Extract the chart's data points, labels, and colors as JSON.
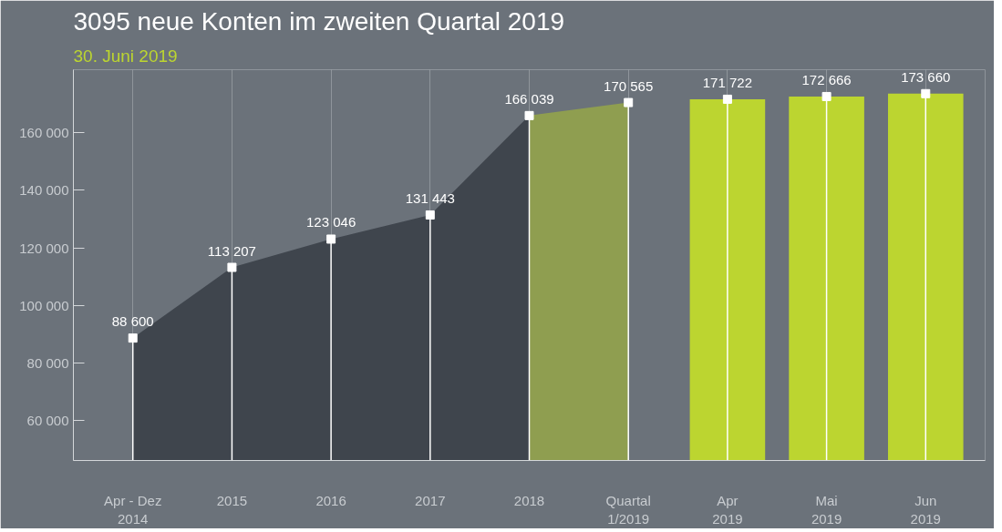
{
  "chart_data": {
    "type": "area",
    "title": "3095 neue Konten im zweiten Quartal 2019",
    "subtitle": "30. Juni 2019",
    "categories": [
      "Apr - Dez\n2014",
      "2015",
      "2016",
      "2017",
      "2018",
      "Quartal\n1/2019",
      "Apr\n2019",
      "Mai\n2019",
      "Jun\n2019"
    ],
    "ylim": [
      46000,
      182000
    ],
    "grid": "x",
    "yticks": [
      {
        "value": 60000,
        "label": "60 000"
      },
      {
        "value": 80000,
        "label": "80 000"
      },
      {
        "value": 100000,
        "label": "100 000"
      },
      {
        "value": 120000,
        "label": "120 000"
      },
      {
        "value": 140000,
        "label": "140 000"
      },
      {
        "value": 160000,
        "label": "160 000"
      }
    ],
    "series": [
      {
        "color": "#3f454d",
        "values": [
          88600,
          113207,
          123046,
          131443,
          166039,
          null,
          null,
          null,
          null
        ]
      },
      {
        "type": "area",
        "color": "#8f9e50",
        "values": [
          null,
          null,
          null,
          null,
          166039,
          170565,
          null,
          null,
          null
        ]
      },
      {
        "type": "bar",
        "color": "#bcd530",
        "values": [
          null,
          null,
          null,
          null,
          null,
          null,
          171722,
          172666,
          173660
        ]
      },
      {
        "type": "lollipop",
        "color": "#ffffff",
        "marker": "square",
        "values": [
          88600,
          113207,
          123046,
          131443,
          166039,
          170565,
          171722,
          172666,
          173660
        ],
        "value_labels": [
          "88 600",
          "113 207",
          "123 046",
          "131 443",
          "166 039",
          "170 565",
          "171 722",
          "172 666",
          "173 660"
        ]
      }
    ]
  }
}
